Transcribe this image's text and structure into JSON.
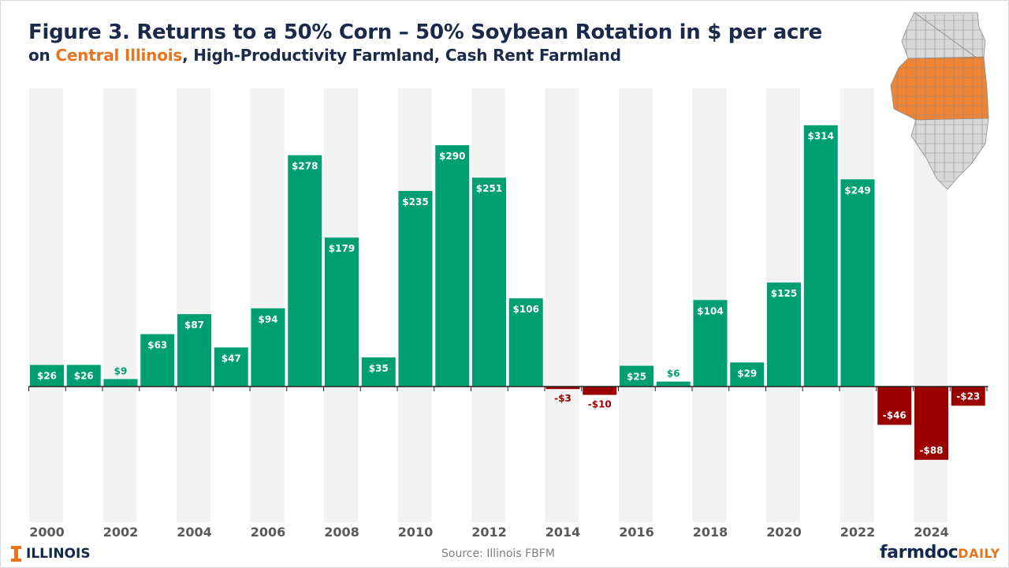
{
  "header": {
    "title": "Figure 3. Returns to a 50% Corn – 50% Soybean Rotation in $ per acre",
    "subtitle_prefix": "on ",
    "subtitle_highlight": "Central Illinois",
    "subtitle_suffix": ", High-Productivity Farmland, Cash Rent Farmland"
  },
  "footer": {
    "org_logo": "ILLINOIS",
    "source": "Source: Illinois FBFM",
    "brand_main": "farmdoc",
    "brand_accent": "DAILY"
  },
  "colors": {
    "positive": "#009f72",
    "negative": "#9b0000",
    "band": "#f2f2f2",
    "title": "#1b2a4a",
    "highlight": "#e8741e",
    "map_region": "#f08433",
    "map_other": "#d9d9d9"
  },
  "map_icon": "illinois-county-map",
  "chart_data": {
    "type": "bar",
    "categories": [
      "2000",
      "2001",
      "2002",
      "2003",
      "2004",
      "2005",
      "2006",
      "2007",
      "2008",
      "2009",
      "2010",
      "2011",
      "2012",
      "2013",
      "2014",
      "2015",
      "2016",
      "2017",
      "2018",
      "2019",
      "2020",
      "2021",
      "2022",
      "2023",
      "2024",
      "2025"
    ],
    "values": [
      26,
      26,
      9,
      63,
      87,
      47,
      94,
      278,
      179,
      35,
      235,
      290,
      251,
      106,
      -3,
      -10,
      25,
      6,
      104,
      29,
      125,
      314,
      249,
      -46,
      -88,
      -23
    ],
    "data_labels": [
      "$26",
      "$26",
      "$9",
      "$63",
      "$87",
      "$47",
      "$94",
      "$278",
      "$179",
      "$35",
      "$235",
      "$290",
      "$251",
      "$106",
      "-$3",
      "-$10",
      "$25",
      "$6",
      "$104",
      "$29",
      "$125",
      "$314",
      "$249",
      "-$46",
      "-$88",
      "-$23"
    ],
    "x_tick_labels": [
      "2000",
      "",
      "2002",
      "",
      "2004",
      "",
      "2006",
      "",
      "2008",
      "",
      "2010",
      "",
      "2012",
      "",
      "2014",
      "",
      "2016",
      "",
      "2018",
      "",
      "2020",
      "",
      "2022",
      "",
      "2024",
      ""
    ],
    "title": "Figure 3. Returns to a 50% Corn – 50% Soybean Rotation in $ per acre",
    "xlabel": "",
    "ylabel": "",
    "ylim": [
      -155,
      345
    ],
    "grid": false,
    "legend": "none"
  }
}
